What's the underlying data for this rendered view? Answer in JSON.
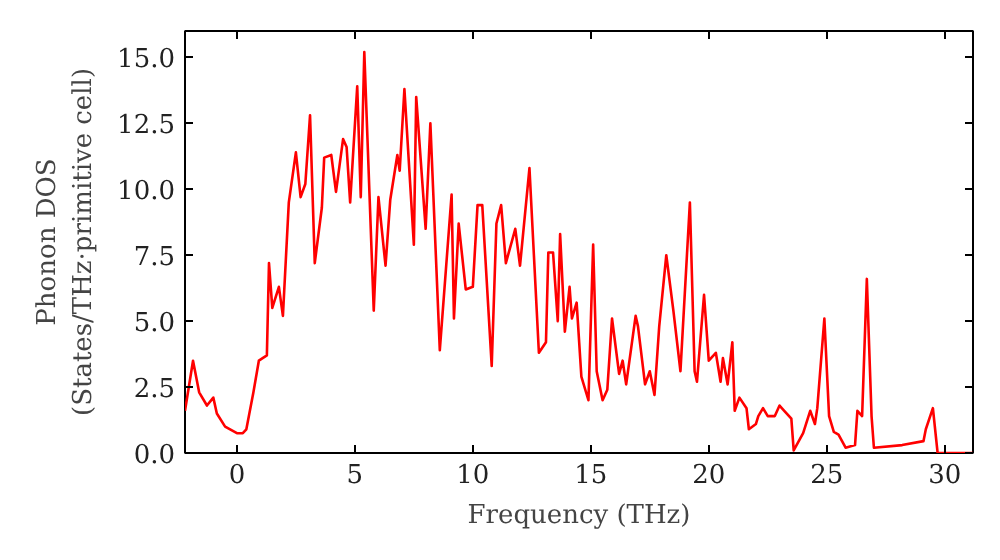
{
  "chart_data": {
    "type": "line",
    "xlabel": "Frequency (THz)",
    "ylabel": "Phonon DOS\n(States/THz·primitive cell)",
    "xlim": [
      -2.2,
      31.2
    ],
    "xticks": [
      0,
      5,
      10,
      15,
      20,
      25,
      30
    ],
    "ylim": [
      0,
      16
    ],
    "yticks": [
      {
        "value": 0,
        "label": "0.0"
      },
      {
        "value": 2.5,
        "label": "2.5"
      },
      {
        "value": 5,
        "label": "5.0"
      },
      {
        "value": 7.5,
        "label": "7.5"
      },
      {
        "value": 10,
        "label": "10.0"
      },
      {
        "value": 12.5,
        "label": "12.5"
      },
      {
        "value": 15,
        "label": "15.0"
      }
    ],
    "grid": false,
    "line_style": "solid",
    "series": [
      {
        "color": "#ff0000",
        "x": [
          -2.2,
          -1.86,
          -1.6,
          -1.27,
          -1.0,
          -0.85,
          -0.5,
          0,
          0.25,
          0.4,
          0.7,
          0.93,
          1.27,
          1.36,
          1.5,
          1.78,
          1.95,
          2.2,
          2.5,
          2.7,
          2.9,
          3.1,
          3.3,
          3.6,
          3.7,
          4.0,
          4.2,
          4.5,
          4.65,
          4.8,
          5.1,
          5.25,
          5.4,
          5.8,
          6.0,
          6.3,
          6.5,
          6.8,
          6.9,
          7.1,
          7.5,
          7.6,
          8.0,
          8.2,
          8.6,
          9.1,
          9.2,
          9.4,
          9.7,
          10.0,
          10.2,
          10.4,
          10.8,
          11.0,
          11.2,
          11.4,
          11.8,
          12.0,
          12.4,
          12.8,
          13.1,
          13.2,
          13.4,
          13.6,
          13.7,
          13.9,
          14.1,
          14.2,
          14.4,
          14.6,
          14.9,
          15.1,
          15.25,
          15.5,
          15.7,
          15.9,
          16.2,
          16.35,
          16.5,
          16.9,
          17.0,
          17.3,
          17.5,
          17.7,
          17.9,
          18.2,
          18.5,
          18.8,
          19.2,
          19.4,
          19.5,
          19.8,
          20.0,
          20.3,
          20.5,
          20.6,
          20.8,
          21.0,
          21.1,
          21.3,
          21.6,
          21.7,
          22.0,
          22.1,
          22.3,
          22.5,
          22.8,
          23.0,
          23.2,
          23.5,
          23.6,
          24.0,
          24.3,
          24.5,
          24.6,
          24.9,
          25.1,
          25.3,
          25.5,
          25.8,
          26.2,
          26.3,
          26.5,
          26.7,
          26.9,
          27.0,
          28.2,
          29.1,
          29.2,
          29.5,
          29.7,
          31.2
        ],
        "values": [
          1.6,
          3.5,
          2.3,
          1.8,
          2.1,
          1.5,
          1.0,
          0.75,
          0.75,
          0.9,
          2.3,
          3.5,
          3.7,
          7.2,
          5.5,
          6.3,
          5.2,
          9.5,
          11.4,
          9.7,
          10.2,
          12.8,
          7.2,
          9.3,
          11.2,
          11.3,
          9.9,
          11.9,
          11.6,
          9.5,
          13.9,
          9.7,
          15.2,
          5.4,
          9.7,
          7.1,
          9.6,
          11.3,
          10.7,
          13.8,
          7.9,
          13.5,
          8.5,
          12.5,
          3.9,
          9.8,
          5.1,
          8.7,
          6.2,
          6.3,
          9.4,
          9.4,
          3.3,
          8.7,
          9.4,
          7.2,
          8.5,
          7.1,
          10.8,
          3.8,
          4.2,
          7.6,
          7.6,
          5.0,
          8.3,
          4.6,
          6.3,
          5.1,
          5.7,
          2.9,
          2.0,
          7.9,
          3.1,
          2.0,
          2.4,
          5.1,
          3.0,
          3.5,
          2.6,
          5.2,
          4.8,
          2.6,
          3.1,
          2.2,
          4.8,
          7.5,
          5.4,
          3.1,
          9.5,
          3.1,
          2.7,
          6.0,
          3.5,
          3.8,
          2.7,
          3.6,
          2.6,
          4.2,
          1.6,
          2.1,
          1.7,
          0.9,
          1.1,
          1.4,
          1.7,
          1.4,
          1.4,
          1.8,
          1.6,
          1.3,
          0.1,
          0.75,
          1.6,
          1.1,
          1.7,
          5.1,
          1.4,
          0.8,
          0.7,
          0.2,
          0.3,
          1.6,
          1.4,
          6.6,
          1.4,
          0.2,
          0.3,
          0.45,
          0.9,
          1.7,
          0.0,
          0.0
        ]
      }
    ]
  }
}
